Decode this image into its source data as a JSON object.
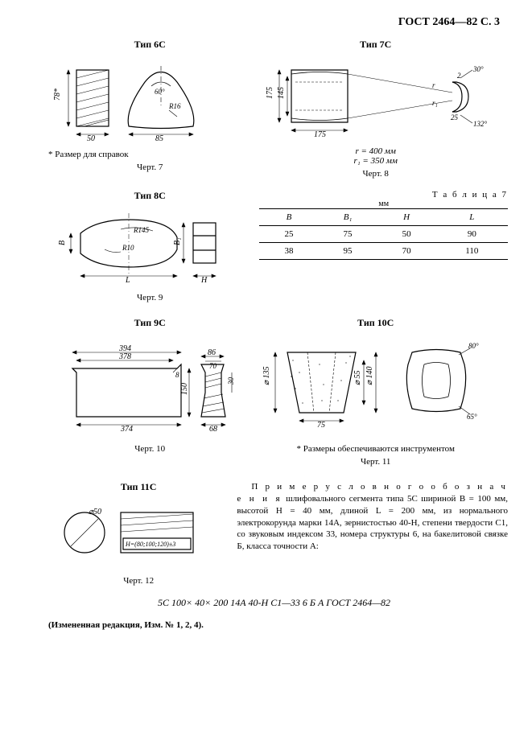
{
  "header": "ГОСТ 2464—82 С. 3",
  "fig7": {
    "title": "Тип 6С",
    "dims": {
      "h": "78*",
      "w1": "50",
      "w2": "85",
      "angle": "60°",
      "radius": "R16"
    },
    "note": "* Размер для справок",
    "caption": "Черт. 7"
  },
  "fig8": {
    "title": "Тип 7С",
    "dims": {
      "h_out": "175",
      "h_in": "145",
      "w": "175",
      "angle_top": "30°",
      "angle_bot": "132°",
      "arc": "2",
      "arc_dim": "25",
      "r_label": "r",
      "r1_label": "r₁"
    },
    "params": {
      "r": "r = 400 мм",
      "r1": "r₁ = 350 мм"
    },
    "caption": "Черт. 8"
  },
  "fig9": {
    "title": "Тип 8С",
    "dims": {
      "B": "B",
      "B1": "B₁",
      "r1": "R145",
      "r2": "R10",
      "L": "L",
      "H": "H"
    },
    "caption": "Черт. 9"
  },
  "table7": {
    "label": "Т а б л и ц а  7",
    "unit": "мм",
    "columns": [
      "B",
      "B₁",
      "H",
      "L"
    ],
    "rows": [
      [
        "25",
        "75",
        "50",
        "90"
      ],
      [
        "38",
        "95",
        "70",
        "110"
      ]
    ]
  },
  "fig10": {
    "title": "Тип 9С",
    "dims": {
      "w_top": "394",
      "w_mid": "378",
      "w_bot": "374",
      "step": "8",
      "h": "150",
      "w2_top": "86",
      "w2_mid": "70",
      "w2_bot": "68",
      "step2": "30"
    },
    "caption": "Черт. 10"
  },
  "fig11": {
    "title": "Тип 10С",
    "dims": {
      "d_left": "⌀ 135",
      "d_mid": "⌀ 55",
      "d_right": "⌀ 140",
      "w": "75",
      "angle_top": "80°",
      "angle_bot": "65°"
    },
    "note": "* Размеры обеспечиваются инструментом",
    "caption": "Черт. 11"
  },
  "fig12": {
    "title": "Тип 11С",
    "dims": {
      "dia": "⌀50",
      "Hspec": "H=(80;100;120)±3"
    },
    "caption": "Черт. 12"
  },
  "example": {
    "lead": "П р и м е р",
    "rest": " у с л о в н о г о  о б о з н а ч е н и я",
    "body": "шлифовального сегмента типа 5С шириной B = 100 мм, высотой H = 40 мм, длиной L = 200 мм, из нормального электрокорунда марки 14А, зернистостью 40-Н, степени твердости С1, со звуковым индексом 33, номера структуры 6, на бакелитовой связке Б, класса точности А:"
  },
  "designation": "5С 100× 40× 200 14А 40-Н С1—33 6 Б А ГОСТ 2464—82",
  "amendment": "(Измененная редакция, Изм. № 1, 2, 4).",
  "colors": {
    "stroke": "#000000",
    "bg": "#ffffff",
    "hatch": "#000000"
  }
}
